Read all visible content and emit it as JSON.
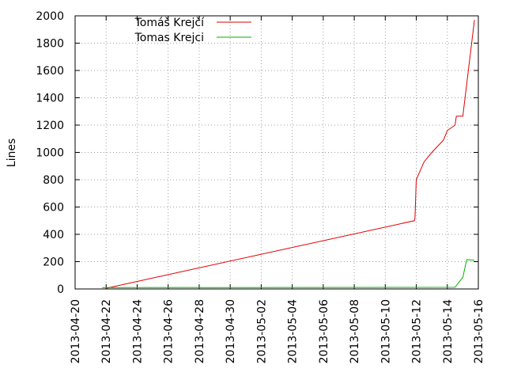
{
  "chart_data": {
    "type": "line",
    "title": "",
    "xlabel": "",
    "ylabel": "Lines",
    "x_type": "date",
    "xlim": [
      "2013-04-20",
      "2013-05-16"
    ],
    "ylim": [
      0,
      2000
    ],
    "grid": "dotted, both axes",
    "legend_position": "top-left",
    "x_ticks": [
      "2013-04-20",
      "2013-04-22",
      "2013-04-24",
      "2013-04-26",
      "2013-04-28",
      "2013-04-30",
      "2013-05-02",
      "2013-05-04",
      "2013-05-06",
      "2013-05-08",
      "2013-05-10",
      "2013-05-12",
      "2013-05-14",
      "2013-05-16"
    ],
    "y_ticks": [
      "0",
      "200",
      "400",
      "600",
      "800",
      "1000",
      "1200",
      "1400",
      "1600",
      "1800",
      "2000"
    ],
    "series": [
      {
        "name": "Tomáš Krejčí",
        "color": "#e00000",
        "points": [
          [
            "2013-04-22 00:00",
            5
          ],
          [
            "2013-05-11 21:00",
            500
          ],
          [
            "2013-05-11 22:00",
            520
          ],
          [
            "2013-05-12 00:00",
            800
          ],
          [
            "2013-05-12 12:00",
            930
          ],
          [
            "2013-05-13 00:00",
            1000
          ],
          [
            "2013-05-13 12:00",
            1060
          ],
          [
            "2013-05-13 18:00",
            1090
          ],
          [
            "2013-05-14 00:00",
            1160
          ],
          [
            "2013-05-14 12:00",
            1200
          ],
          [
            "2013-05-14 14:00",
            1265
          ],
          [
            "2013-05-15 00:00",
            1265
          ],
          [
            "2013-05-15 18:00",
            1970
          ]
        ]
      },
      {
        "name": "Tomas Krejci",
        "color": "#00b000",
        "points": [
          [
            "2013-04-21 18:00",
            10
          ],
          [
            "2013-05-14 12:00",
            12
          ],
          [
            "2013-05-14 18:00",
            50
          ],
          [
            "2013-05-15 00:00",
            85
          ],
          [
            "2013-05-15 06:00",
            215
          ],
          [
            "2013-05-15 18:00",
            210
          ]
        ]
      }
    ]
  }
}
